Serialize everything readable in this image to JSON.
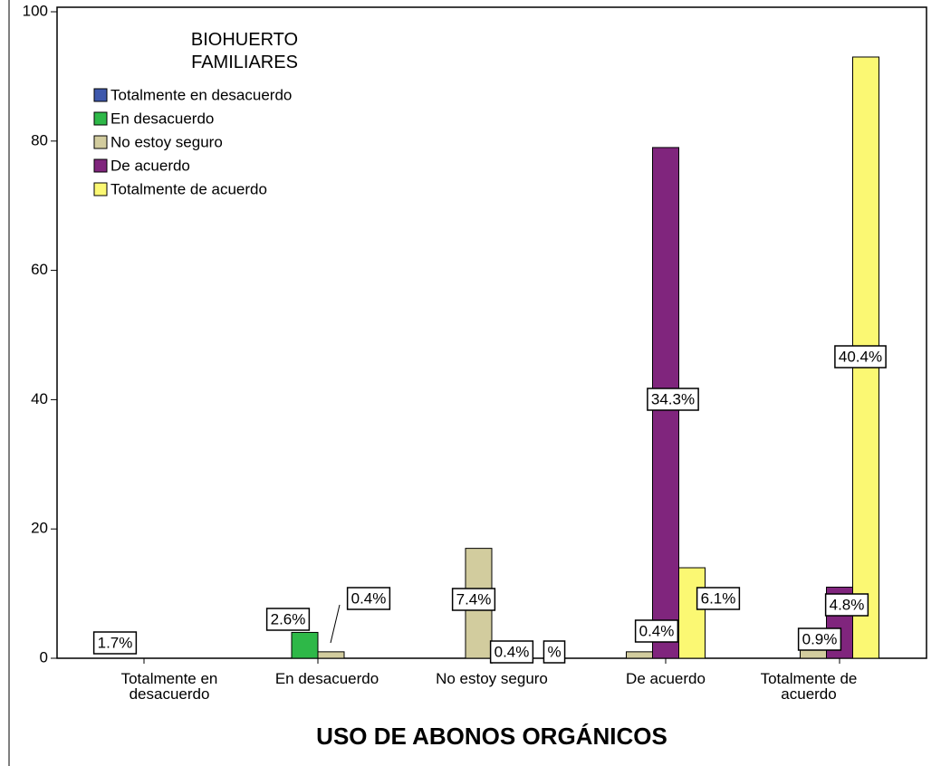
{
  "chart_data": {
    "type": "bar",
    "x_label": "USO DE ABONOS ORGÁNICOS",
    "legend_title": "BIOHUERTO FAMILIARES",
    "categories": [
      "Totalmente en desacuerdo",
      "En desacuerdo",
      "No estoy seguro",
      "De acuerdo",
      "Totalmente de acuerdo"
    ],
    "series": [
      {
        "name": "Totalmente en desacuerdo",
        "color": "#3e58ac",
        "values": [
          null,
          null,
          null,
          null,
          null
        ]
      },
      {
        "name": "En desacuerdo",
        "color": "#2eb848",
        "values": [
          null,
          4,
          null,
          null,
          null
        ]
      },
      {
        "name": "No estoy seguro",
        "color": "#d2cc9e",
        "values": [
          null,
          1,
          17,
          1,
          2
        ]
      },
      {
        "name": "De acuerdo",
        "color": "#80257d",
        "values": [
          null,
          null,
          1,
          79,
          11
        ]
      },
      {
        "name": "Totalmente de acuerdo",
        "color": "#fbf873",
        "values": [
          null,
          null,
          null,
          14,
          93
        ]
      }
    ],
    "data_labels": [
      "1.7%",
      "2.6%",
      "0.4%",
      "7.4%",
      "0.4%",
      "%",
      "0.4%",
      "34.3%",
      "6.1%",
      "0.9%",
      "4.8%",
      "40.4%"
    ],
    "ylim": [
      0,
      100
    ],
    "yticks": [
      0,
      20,
      40,
      60,
      80,
      100
    ],
    "legend": "upper left"
  }
}
